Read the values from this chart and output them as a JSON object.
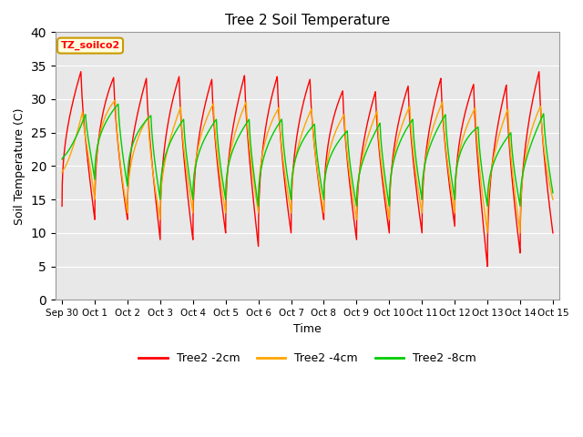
{
  "title": "Tree 2 Soil Temperature",
  "xlabel": "Time",
  "ylabel": "Soil Temperature (C)",
  "ylim": [
    0,
    40
  ],
  "yticks": [
    0,
    5,
    10,
    15,
    20,
    25,
    30,
    35,
    40
  ],
  "annotation_text": "TZ_soilco2",
  "legend_labels": [
    "Tree2 -2cm",
    "Tree2 -4cm",
    "Tree2 -8cm"
  ],
  "line_colors": [
    "#ff0000",
    "#ffa500",
    "#00cc00"
  ],
  "background_color": "#e8e8e8",
  "x_tick_labels": [
    "Sep 30",
    "Oct 1",
    "Oct 2",
    "Oct 3",
    "Oct 4",
    "Oct 5",
    "Oct 6",
    "Oct 7",
    "Oct 8",
    "Oct 9",
    "Oct 10",
    "Oct 11",
    "Oct 12",
    "Oct 13",
    "Oct 14",
    "Oct 15"
  ],
  "n_days": 16,
  "samples_per_day": 144,
  "peak_hour_2cm": 0.58,
  "peak_hour_4cm": 0.63,
  "peak_hour_8cm": 0.72,
  "peaks_2cm": [
    33,
    35,
    32,
    34,
    33,
    33,
    34,
    33,
    33,
    30,
    32,
    32,
    34,
    31,
    33,
    35
  ],
  "troughs_2cm": [
    14,
    12,
    12,
    9,
    9,
    10,
    8,
    10,
    12,
    9,
    10,
    10,
    11,
    5,
    7,
    10
  ],
  "peaks_4cm": [
    20,
    33,
    28,
    27,
    30,
    29,
    30,
    28,
    29,
    27,
    29,
    29,
    30,
    28,
    29,
    29
  ],
  "troughs_4cm": [
    19,
    15,
    13,
    12,
    13,
    13,
    13,
    13,
    13,
    12,
    12,
    13,
    13,
    10,
    10,
    15
  ],
  "peaks_8cm": [
    22,
    30,
    29,
    27,
    27,
    27,
    27,
    27,
    26,
    25,
    27,
    27,
    28,
    25,
    25,
    29
  ],
  "troughs_8cm": [
    21,
    18,
    17,
    15,
    15,
    15,
    14,
    15,
    15,
    14,
    14,
    15,
    15,
    14,
    14,
    16
  ]
}
